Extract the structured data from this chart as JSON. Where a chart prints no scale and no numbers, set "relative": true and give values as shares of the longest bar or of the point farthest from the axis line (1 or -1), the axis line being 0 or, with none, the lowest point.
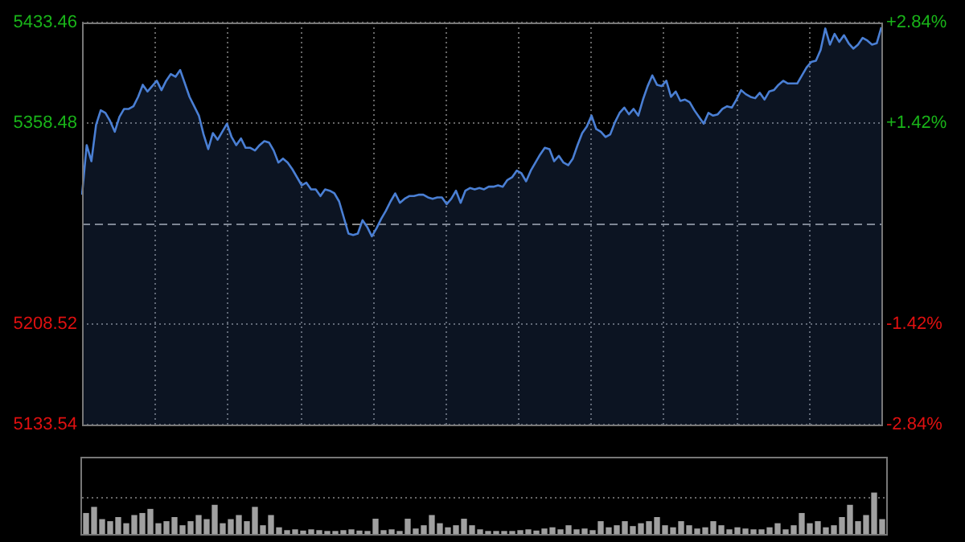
{
  "chart_data": [
    {
      "type": "area",
      "categories": [
        null,
        null,
        null,
        null,
        null,
        null,
        null,
        null,
        null,
        null,
        null,
        null,
        null,
        null,
        null,
        null,
        null,
        null,
        null,
        null,
        null,
        null,
        null,
        null,
        null,
        null,
        null,
        null,
        null,
        null,
        null,
        null,
        null,
        null,
        null,
        null,
        null,
        null,
        null,
        null,
        null,
        null,
        null,
        null,
        null,
        null,
        null,
        null,
        null,
        null,
        null,
        null,
        null,
        null,
        null,
        null,
        null,
        null,
        null,
        null,
        null,
        null,
        null,
        null,
        null,
        null,
        null,
        null,
        null,
        null,
        null,
        null,
        null,
        null,
        null,
        null,
        null,
        null,
        null,
        null,
        null,
        null,
        null,
        null,
        null,
        null,
        null,
        null,
        null,
        null,
        null,
        null,
        null,
        null,
        null,
        null,
        null,
        null,
        null,
        null,
        null,
        null,
        null,
        null,
        null,
        null,
        null,
        null,
        null,
        null,
        null,
        null,
        null,
        null,
        null,
        null,
        null,
        null,
        null,
        null,
        null,
        null,
        null,
        null,
        null,
        null,
        null,
        null,
        null,
        null,
        null,
        null,
        null,
        null,
        null,
        null,
        null,
        null,
        null,
        null,
        null,
        null,
        null,
        null,
        null,
        null,
        null,
        null,
        null,
        null,
        null,
        null,
        null,
        null,
        null,
        null,
        null,
        null,
        null,
        null,
        null,
        null,
        null,
        null,
        null,
        null,
        null,
        null,
        null,
        null,
        null,
        null
      ],
      "series": [
        {
          "color": "#4a7fd4",
          "values": [
            5305,
            5342,
            5330,
            5357,
            5368,
            5366,
            5360,
            5352,
            5363,
            5369,
            5369,
            5371,
            5378,
            5387,
            5382,
            5386,
            5390,
            5383,
            5390,
            5395,
            5393,
            5398,
            5388,
            5378,
            5371,
            5364,
            5350,
            5339,
            5351,
            5346,
            5352,
            5358,
            5348,
            5342,
            5347,
            5340,
            5340,
            5338,
            5342,
            5345,
            5344,
            5338,
            5329,
            5332,
            5329,
            5324,
            5318,
            5312,
            5314,
            5309,
            5309,
            5304,
            5309,
            5308,
            5306,
            5300,
            5288,
            5276,
            5275,
            5276,
            5286,
            5281,
            5274,
            5280,
            5287,
            5293,
            5300,
            5306,
            5299,
            5302,
            5304,
            5304,
            5305,
            5305,
            5303,
            5302,
            5303,
            5303,
            5298,
            5302,
            5308,
            5299,
            5308,
            5310,
            5309,
            5310,
            5309,
            5311,
            5311,
            5312,
            5311,
            5316,
            5318,
            5323,
            5321,
            5315,
            5323,
            5329,
            5335,
            5340,
            5339,
            5330,
            5334,
            5329,
            5327,
            5332,
            5342,
            5351,
            5356,
            5364,
            5354,
            5352,
            5348,
            5350,
            5359,
            5366,
            5370,
            5365,
            5369,
            5364,
            5376,
            5386,
            5394,
            5387,
            5386,
            5390,
            5378,
            5382,
            5375,
            5376,
            5374,
            5368,
            5363,
            5358,
            5366,
            5364,
            5365,
            5369,
            5371,
            5370,
            5376,
            5383,
            5380,
            5378,
            5377,
            5381,
            5376,
            5382,
            5383,
            5387,
            5390,
            5388,
            5388,
            5388,
            5394,
            5400,
            5404,
            5405,
            5413,
            5429,
            5417,
            5425,
            5419,
            5424,
            5418,
            5414,
            5417,
            5422,
            5420,
            5417,
            5418,
            5430
          ]
        }
      ],
      "ylim": [
        5133.54,
        5433.46
      ],
      "yticks": [
        5133.54,
        5208.52,
        5358.48,
        5433.46
      ],
      "y2lim": [
        -2.84,
        2.84
      ],
      "y2ticks": [
        {
          "value": -2.84,
          "label": "-2.84%"
        },
        {
          "value": -1.42,
          "label": "-1.42%"
        },
        {
          "value": 1.42,
          "label": "+1.42%"
        },
        {
          "value": 2.84,
          "label": "+2.84%"
        }
      ],
      "ref_lines": [
        {
          "axis": "y",
          "value": 5283.5,
          "line_style": "dashed"
        }
      ],
      "grid": true,
      "legend": false
    },
    {
      "type": "bar",
      "relative": true,
      "color": "#a0a0a0",
      "legend": false,
      "ref_lines": [
        {
          "axis": "y",
          "value": 0.9,
          "line_style": "dotted",
          "color": "#666666"
        }
      ],
      "categories": [
        null,
        null,
        null,
        null,
        null,
        null,
        null,
        null,
        null,
        null,
        null,
        null,
        null,
        null,
        null,
        null,
        null,
        null,
        null,
        null,
        null,
        null,
        null,
        null,
        null,
        null,
        null,
        null,
        null,
        null,
        null,
        null,
        null,
        null,
        null,
        null,
        null,
        null,
        null,
        null,
        null,
        null,
        null,
        null,
        null,
        null,
        null,
        null,
        null,
        null,
        null,
        null,
        null,
        null,
        null,
        null,
        null,
        null,
        null,
        null,
        null,
        null,
        null,
        null,
        null,
        null,
        null,
        null,
        null,
        null,
        null,
        null,
        null,
        null,
        null,
        null,
        null,
        null,
        null,
        null,
        null,
        null,
        null,
        null,
        null,
        null,
        null,
        null,
        null,
        null,
        null,
        null,
        null,
        null,
        null,
        null,
        null,
        null,
        null,
        null
      ],
      "values": [
        0.5,
        0.65,
        0.35,
        0.3,
        0.4,
        0.25,
        0.45,
        0.5,
        0.6,
        0.25,
        0.3,
        0.4,
        0.2,
        0.3,
        0.45,
        0.35,
        0.7,
        0.25,
        0.35,
        0.45,
        0.3,
        0.65,
        0.2,
        0.45,
        0.15,
        0.08,
        0.1,
        0.07,
        0.1,
        0.08,
        0.06,
        0.06,
        0.08,
        0.1,
        0.07,
        0.06,
        0.36,
        0.08,
        0.1,
        0.06,
        0.36,
        0.12,
        0.2,
        0.45,
        0.25,
        0.15,
        0.2,
        0.36,
        0.2,
        0.1,
        0.06,
        0.06,
        0.06,
        0.06,
        0.08,
        0.1,
        0.07,
        0.12,
        0.15,
        0.1,
        0.2,
        0.1,
        0.12,
        0.08,
        0.3,
        0.15,
        0.2,
        0.3,
        0.18,
        0.25,
        0.3,
        0.4,
        0.2,
        0.15,
        0.3,
        0.2,
        0.12,
        0.15,
        0.3,
        0.2,
        0.1,
        0.15,
        0.12,
        0.1,
        0.1,
        0.15,
        0.25,
        0.1,
        0.2,
        0.5,
        0.25,
        0.3,
        0.15,
        0.2,
        0.4,
        0.7,
        0.3,
        0.45,
        1,
        0.35
      ]
    }
  ]
}
